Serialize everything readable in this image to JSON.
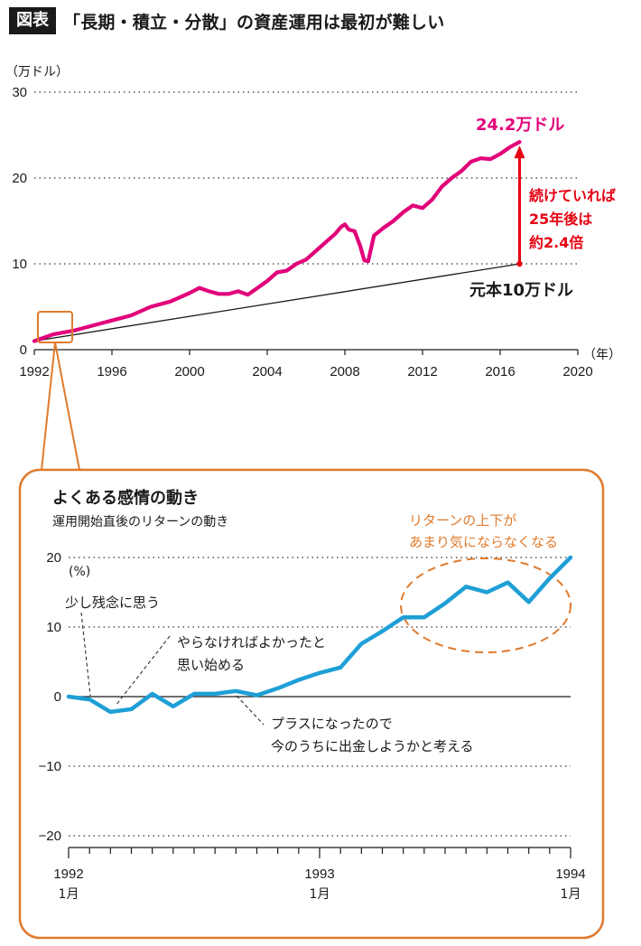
{
  "header": {
    "badge": "図表",
    "title": "「長期・積立・分散」の資産運用は最初が難しい"
  },
  "colors": {
    "main_line": "#e2007a",
    "inset_line": "#1e9fd6",
    "accent": "#e07a2c",
    "arrow": "#e60012"
  },
  "chart_data": [
    {
      "type": "line",
      "ylabel": "（万ドル）",
      "xlabel": "（年）",
      "ylim": [
        0,
        30
      ],
      "xlim": [
        1992,
        2020
      ],
      "yticks": [
        0,
        10,
        20,
        30
      ],
      "xticks": [
        1992,
        1996,
        2000,
        2004,
        2008,
        2012,
        2016,
        2020
      ],
      "grid": "dotted horizontal",
      "series": [
        {
          "x": [
            1992.0,
            1993.0,
            1994.0,
            1995.0,
            1996.0,
            1997.0,
            1998.0,
            1999.0,
            2000.0,
            2000.5,
            2001.0,
            2001.5,
            2002.0,
            2002.5,
            2003.0,
            2003.5,
            2004.0,
            2004.5,
            2005.0,
            2005.5,
            2006.0,
            2006.5,
            2007.0,
            2007.5,
            2007.8,
            2008.0,
            2008.2,
            2008.5,
            2008.8,
            2009.0,
            2009.2,
            2009.5,
            2010.0,
            2010.5,
            2011.0,
            2011.5,
            2012.0,
            2012.5,
            2013.0,
            2013.5,
            2014.0,
            2014.5,
            2015.0,
            2015.5,
            2016.0,
            2016.5,
            2017.0
          ],
          "y": [
            1.0,
            1.8,
            2.2,
            2.8,
            3.4,
            4.0,
            5.0,
            5.6,
            6.6,
            7.2,
            6.8,
            6.5,
            6.5,
            6.8,
            6.4,
            7.2,
            8.0,
            9.0,
            9.2,
            10.0,
            10.5,
            11.5,
            12.5,
            13.5,
            14.3,
            14.6,
            14.0,
            13.8,
            12.0,
            10.4,
            10.3,
            13.3,
            14.2,
            15.0,
            16.0,
            16.8,
            16.5,
            17.5,
            19.0,
            20.0,
            20.8,
            21.9,
            22.3,
            22.2,
            22.8,
            23.6,
            24.2
          ]
        },
        {
          "x": [
            1992,
            2017
          ],
          "y": [
            1,
            10
          ]
        }
      ],
      "annotations": {
        "end_value": "24.2万ドル",
        "growth_line1": "続けていれば",
        "growth_line2": "25年後は",
        "growth_line3": "約2.4倍",
        "principal": "元本10万ドル"
      }
    },
    {
      "type": "line",
      "title": "よくある感情の動き",
      "subtitle": "運用開始直後のリターンの動き",
      "ylabel": "(%)",
      "ylim": [
        -20,
        20
      ],
      "yticks": [
        20,
        10,
        0,
        -10,
        -20
      ],
      "ytick_labels": [
        "20",
        "10",
        "0",
        "−10",
        "−20"
      ],
      "xticks": [
        {
          "year": "1992",
          "month": "1月"
        },
        {
          "year": "1993",
          "month": "1月"
        },
        {
          "year": "1994",
          "month": "1月"
        }
      ],
      "series": [
        {
          "x": [
            0,
            1,
            2,
            3,
            4,
            5,
            6,
            7,
            8,
            9,
            10,
            11,
            12,
            13,
            14,
            15,
            16,
            17,
            18,
            19,
            20,
            21,
            22,
            23,
            24
          ],
          "y": [
            0.0,
            -0.4,
            -2.2,
            -1.8,
            0.4,
            -1.4,
            0.4,
            0.4,
            0.8,
            0.2,
            1.2,
            2.4,
            3.4,
            4.2,
            7.6,
            9.4,
            11.4,
            11.4,
            13.4,
            15.8,
            15.0,
            16.4,
            13.6,
            17.0,
            20.0
          ]
        }
      ],
      "annotations": {
        "note1": "少し残念に思う",
        "note2_line1": "やらなければよかったと",
        "note2_line2": "思い始める",
        "note3_line1": "プラスになったので",
        "note3_line2": "今のうちに出金しようかと考える",
        "note4_line1": "リターンの上下が",
        "note4_line2": "あまり気にならなくなる"
      }
    }
  ]
}
